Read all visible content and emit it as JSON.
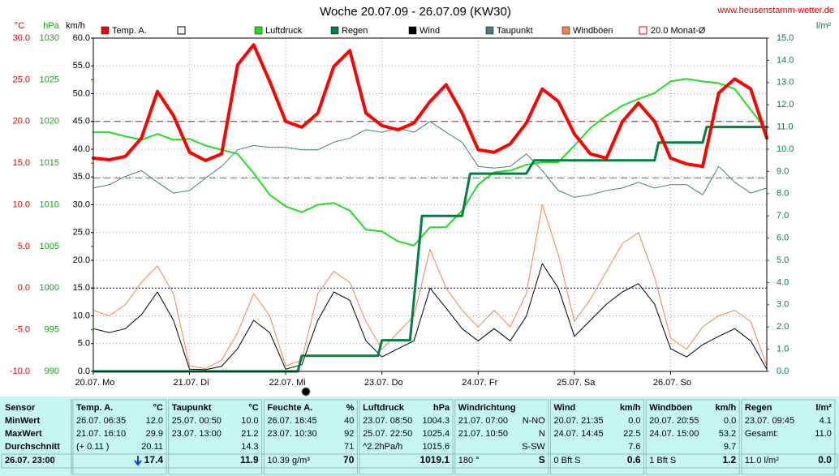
{
  "chart_data": {
    "type": "line",
    "title": "Woche 20.07.09 - 26.07.09 (KW30)",
    "source": "www.heusenstamm-wetter.de",
    "xlim": [
      0,
      168
    ],
    "xticks": [
      {
        "value": 0,
        "label": "20.07. Mo"
      },
      {
        "value": 24,
        "label": "21.07. Di"
      },
      {
        "value": 48,
        "label": "22.07. Mi"
      },
      {
        "value": 72,
        "label": "23.07. Do"
      },
      {
        "value": 96,
        "label": "24.07. Fr"
      },
      {
        "value": 120,
        "label": "25.07. Sa"
      },
      {
        "value": 144,
        "label": "26.07. So"
      }
    ],
    "axes": [
      {
        "label": "°C",
        "color": "#e00000",
        "lim": [
          -10,
          30
        ],
        "ticks": [
          {
            "value": 30,
            "label": "30.0"
          },
          {
            "value": 25,
            "label": "25.0"
          },
          {
            "value": 20,
            "label": "20.0"
          },
          {
            "value": 15,
            "label": "15.0"
          },
          {
            "value": 10,
            "label": "10.0"
          },
          {
            "value": 5,
            "label": "5.0"
          },
          {
            "value": 0,
            "label": "0.0"
          },
          {
            "value": -5,
            "label": "-5.0"
          },
          {
            "value": -10,
            "label": "-10.0"
          }
        ]
      },
      {
        "label": "hPa",
        "color": "#00b000",
        "lim": [
          990,
          1030
        ],
        "ticks": [
          1030,
          1025,
          1020,
          1015,
          1010,
          1005,
          1000,
          995,
          990
        ]
      },
      {
        "label": "km/h",
        "color": "#000000",
        "lim": [
          0,
          60
        ],
        "grid": true,
        "ticks": [
          {
            "value": 60,
            "label": "60.0"
          },
          {
            "value": 55,
            "label": "55.0"
          },
          {
            "value": 50,
            "label": "50.0"
          },
          {
            "value": 45,
            "label": "45.0"
          },
          {
            "value": 40,
            "label": "40.0"
          },
          {
            "value": 35,
            "label": "35.0"
          },
          {
            "value": 30,
            "label": "30.0"
          },
          {
            "value": 25,
            "label": "25.0"
          },
          {
            "value": 20,
            "label": "20.0"
          },
          {
            "value": 15,
            "label": "15.0"
          },
          {
            "value": 10,
            "label": "10.0"
          },
          {
            "value": 5,
            "label": "5.0"
          },
          {
            "value": 0,
            "label": "0.0"
          }
        ]
      },
      {
        "label": "l/m²",
        "color": "#008040",
        "lim": [
          0,
          15
        ],
        "ticks": [
          {
            "value": 15,
            "label": "15.0"
          },
          {
            "value": 14,
            "label": "14.0"
          },
          {
            "value": 13,
            "label": "13.0"
          },
          {
            "value": 12,
            "label": "12.0"
          },
          {
            "value": 11,
            "label": "11.0"
          },
          {
            "value": 10,
            "label": "10.0"
          },
          {
            "value": 9,
            "label": "9.0"
          },
          {
            "value": 8,
            "label": "8.0"
          },
          {
            "value": 7,
            "label": "7.0"
          },
          {
            "value": 6,
            "label": "6.0"
          },
          {
            "value": 5,
            "label": "5.0"
          },
          {
            "value": 4,
            "label": "4.0"
          },
          {
            "value": 3,
            "label": "3.0"
          },
          {
            "value": 2,
            "label": "2.0"
          },
          {
            "value": 1,
            "label": "1.0"
          },
          {
            "value": 0,
            "label": "0.0"
          }
        ]
      }
    ],
    "x": [
      0,
      4,
      8,
      12,
      16,
      20,
      24,
      28,
      32,
      36,
      40,
      44,
      48,
      52,
      56,
      60,
      64,
      68,
      72,
      76,
      80,
      84,
      88,
      92,
      96,
      100,
      104,
      108,
      112,
      116,
      120,
      124,
      128,
      132,
      136,
      140,
      144,
      148,
      152,
      156,
      160,
      164,
      168
    ],
    "series": [
      {
        "name": "Windböen",
        "color": "#ff8040",
        "axis": 2,
        "width": 1,
        "values": [
          11,
          10,
          12,
          16,
          19,
          14,
          1,
          0.5,
          2,
          7,
          14,
          10,
          1,
          2,
          14,
          18,
          16,
          9,
          4,
          7,
          10,
          22,
          15,
          11,
          8,
          11,
          8,
          14,
          30,
          21,
          9,
          13,
          18,
          23,
          25,
          17,
          6,
          4,
          8,
          10,
          11,
          9,
          1
        ]
      },
      {
        "name": "Wind",
        "color": "#000000",
        "axis": 2,
        "width": 1,
        "values": [
          7.7,
          7.0,
          7.7,
          10.2,
          14.3,
          9.2,
          0.4,
          0.3,
          0.9,
          4.1,
          9.2,
          7.0,
          0.4,
          1.2,
          9.2,
          14.3,
          12.8,
          5.5,
          2.6,
          4.1,
          5.5,
          15.0,
          11.4,
          7.7,
          5.5,
          7.7,
          5.5,
          9.9,
          19.4,
          15.0,
          6.3,
          9.2,
          12.1,
          14.3,
          15.8,
          12.1,
          4.1,
          2.6,
          4.8,
          6.3,
          7.7,
          5.5,
          0.4
        ]
      },
      {
        "name": "Taupunkt",
        "color": "#408080",
        "axis": 0,
        "width": 1,
        "values": [
          12.0,
          12.4,
          13.4,
          14.1,
          12.7,
          11.4,
          11.7,
          13.2,
          14.6,
          16.6,
          17.1,
          16.9,
          16.9,
          16.6,
          16.6,
          17.5,
          18.0,
          19.0,
          18.7,
          19.2,
          18.7,
          20.0,
          18.7,
          17.5,
          14.6,
          14.4,
          14.6,
          16.1,
          14.1,
          11.7,
          10.9,
          11.2,
          11.7,
          12.0,
          12.7,
          12.0,
          12.4,
          12.4,
          11.2,
          14.6,
          12.7,
          11.4,
          12.0
        ]
      },
      {
        "name": "Luftdruck",
        "color": "#22dd22",
        "axis": 1,
        "width": 2,
        "values": [
          1018.7,
          1018.7,
          1018.2,
          1017.8,
          1018.5,
          1017.8,
          1017.9,
          1017.1,
          1016.6,
          1016.1,
          1013.8,
          1011.2,
          1009.8,
          1009.1,
          1010.0,
          1010.2,
          1009.3,
          1007.0,
          1006.8,
          1005.6,
          1005.1,
          1007.3,
          1007.3,
          1009.3,
          1012.4,
          1013.9,
          1014.1,
          1014.8,
          1015.1,
          1015.1,
          1017.1,
          1019.2,
          1020.7,
          1021.9,
          1022.7,
          1023.4,
          1024.8,
          1025.1,
          1024.8,
          1024.6,
          1023.9,
          1021.4,
          1019.0
        ]
      },
      {
        "name": "Regen",
        "color": "#008040",
        "axis": 3,
        "width": 3,
        "x": [
          0,
          51,
          52,
          71,
          72,
          79,
          82,
          92,
          94,
          108,
          110,
          140,
          141,
          152,
          153,
          168
        ],
        "values": [
          0,
          0,
          0.7,
          0.7,
          1.4,
          1.4,
          7.0,
          7.0,
          8.9,
          8.9,
          9.5,
          9.5,
          10.3,
          10.3,
          11.0,
          11.0
        ]
      },
      {
        "name": "Temp. A.",
        "color": "#ff0000",
        "axis": 0,
        "width": 4,
        "values": [
          15.6,
          15.4,
          15.8,
          18.0,
          23.6,
          20.7,
          16.3,
          15.3,
          16.1,
          26.8,
          29.2,
          24.8,
          20.0,
          19.3,
          21.0,
          26.6,
          28.5,
          21.0,
          19.5,
          19.0,
          19.8,
          22.4,
          24.4,
          21.0,
          16.6,
          16.3,
          17.3,
          19.8,
          23.9,
          22.4,
          18.5,
          16.1,
          15.6,
          20.0,
          22.2,
          20.0,
          15.6,
          14.9,
          14.6,
          23.4,
          25.1,
          23.9,
          18.0
        ]
      }
    ],
    "legend_order": [
      5,
      3,
      4,
      1,
      2,
      0
    ],
    "reference_lines": [
      {
        "name": "20.0 Monat-Ø",
        "axis": 0,
        "value": 20,
        "color": "#e00000",
        "dash": "8 5"
      },
      {
        "axis": 1,
        "value": 1013.2,
        "color": "#00c000",
        "dash": "8 5"
      },
      {
        "axis": 0,
        "value": 0,
        "color": "#0000e0",
        "dash": "2 2"
      }
    ]
  },
  "table": {
    "row_labels": [
      "Sensor",
      "MinWert",
      "MaxWert",
      "Durchschnitt",
      "26.07. 23:00"
    ],
    "columns": [
      {
        "header": "Temp. A.",
        "unit": "°C",
        "cells": [
          {
            "left": "26.07. 06:35",
            "right": "12.0"
          },
          {
            "left": "21.07. 16:10",
            "right": "29.9"
          },
          {
            "left": "(+ 0.11 )",
            "right": "20.11"
          },
          {
            "right": "17.4"
          }
        ]
      },
      {
        "header": "Taupunkt",
        "unit": "°C",
        "cells": [
          {
            "left": "25.07. 00:50",
            "right": "10.0"
          },
          {
            "left": "23.07. 13:00",
            "right": "21.2"
          },
          {
            "right": "14.3"
          },
          {
            "right": "11.9"
          }
        ]
      },
      {
        "header": "Feuchte A.",
        "unit": "%",
        "cells": [
          {
            "left": "26.07. 16:45",
            "right": "40"
          },
          {
            "left": "23.07. 10:30",
            "right": "92"
          },
          {
            "right": "71"
          },
          {
            "left": "10.39 g/m³",
            "right": "70"
          }
        ]
      },
      {
        "header": "Luftdruck",
        "unit": "hPa",
        "cells": [
          {
            "left": "23.07. 08:50",
            "right": "1004.3"
          },
          {
            "left": "25.07. 22:50",
            "right": "1025.4"
          },
          {
            "left": "^2.2hPa/h",
            "right": "1015.6"
          },
          {
            "right": "1019.1"
          }
        ]
      },
      {
        "header": "Windrichtung",
        "cells": [
          {
            "left": "21.07. 07:00",
            "right": "N-NO"
          },
          {
            "left": "21.07. 10:50",
            "right": "N"
          },
          {
            "right": "S-SW"
          },
          {
            "left": "180 °",
            "right": "S"
          }
        ]
      },
      {
        "header": "Wind",
        "unit": "km/h",
        "cells": [
          {
            "left": "20.07. 21:35",
            "right": "0.0"
          },
          {
            "left": "24.07. 14:45",
            "right": "22.5"
          },
          {
            "right": "7.6"
          },
          {
            "left": "0 Bft S",
            "right": "0.6"
          }
        ]
      },
      {
        "header": "Windböen",
        "unit": "km/h",
        "cells": [
          {
            "left": "20.07. 20:55",
            "right": "0.0"
          },
          {
            "left": "24.07. 15:00",
            "right": "53.2"
          },
          {
            "right": "9.7"
          },
          {
            "left": "1 Bft S",
            "right": "1.2"
          }
        ]
      },
      {
        "header": "Regen",
        "unit": "l/m²",
        "cells": [
          {
            "left": "23.07. 09:45",
            "right": "4.1"
          },
          {
            "left": "Gesamt:",
            "right": "11.0"
          },
          {},
          {
            "left": "11.0 l/m²",
            "right": "0.0"
          }
        ]
      }
    ]
  }
}
